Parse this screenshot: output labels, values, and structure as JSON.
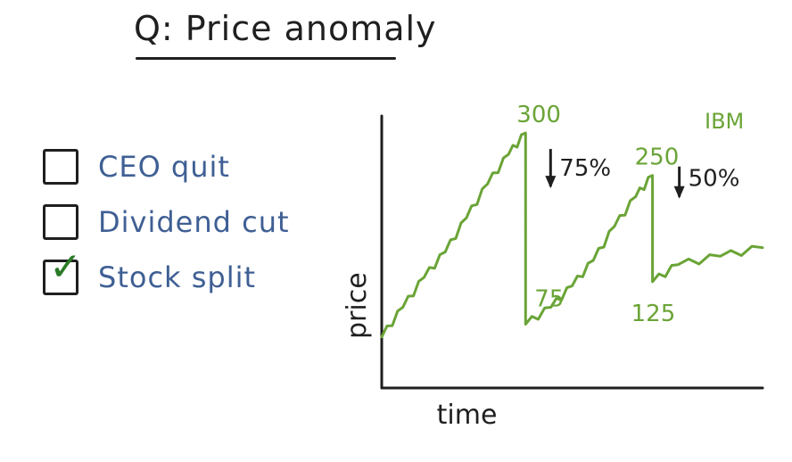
{
  "title": "Q: Price anomaly",
  "options": [
    {
      "label": "CEO quit",
      "checked": false
    },
    {
      "label": "Dividend cut",
      "checked": false
    },
    {
      "label": "Stock split",
      "checked": true
    }
  ],
  "colors": {
    "title": "#1f1f1f",
    "option_text": "#3f5f94",
    "line": "#6aa436",
    "checkmark": "#2a7b27"
  },
  "chart_data": {
    "type": "line",
    "legend": "IBM",
    "xlabel": "time",
    "ylabel": "price",
    "annotations": {
      "peak1": "300",
      "drop1": "75%",
      "trough1": "75",
      "peak2": "250",
      "drop2": "50%",
      "trough2": "125"
    },
    "series": [
      {
        "name": "IBM",
        "points": [
          [
            0,
            60
          ],
          [
            0.5,
            95
          ],
          [
            1,
            130
          ],
          [
            1.5,
            160
          ],
          [
            2,
            200
          ],
          [
            2.5,
            240
          ],
          [
            3,
            275
          ],
          [
            3.4,
            300
          ],
          [
            3.4,
            75
          ],
          [
            4,
            95
          ],
          [
            4.5,
            120
          ],
          [
            5,
            150
          ],
          [
            5.5,
            190
          ],
          [
            6,
            225
          ],
          [
            6.4,
            250
          ],
          [
            6.4,
            125
          ],
          [
            7,
            145
          ],
          [
            8,
            155
          ],
          [
            9,
            165
          ]
        ]
      }
    ]
  }
}
